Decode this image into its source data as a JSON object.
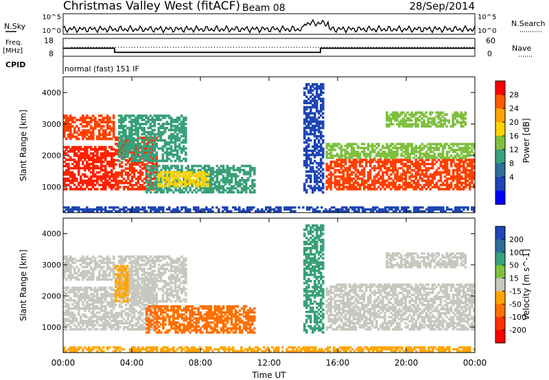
{
  "chart_data": {
    "type": "heatmap",
    "header": {
      "title": "Christmas Valley West (fitACF)",
      "beam": "Beam 08",
      "date": "28/Sep/2014"
    },
    "nsky_panel": {
      "left_label": "N.Sky",
      "right_label": "N.Search",
      "left_ticks": [
        "10^5",
        "10^0"
      ],
      "right_ticks": [
        "10^5",
        "10^0"
      ]
    },
    "freq_panel": {
      "left_label_1": "Freq.",
      "left_label_2": "[MHz]",
      "right_label": "Nave",
      "left_ticks": [
        "18",
        "8"
      ],
      "right_ticks": [
        "60",
        "0"
      ],
      "freq_steps": [
        {
          "from": 0,
          "to": 3,
          "value": 12.5
        },
        {
          "from": 3,
          "to": 15,
          "value": 10.2
        },
        {
          "from": 15,
          "to": 24,
          "value": 12.5
        }
      ]
    },
    "cpid": {
      "label": "CPID",
      "text": "normal (fast) 151 IF"
    },
    "x_axis": {
      "label": "Time UT",
      "ticks": [
        "00:00",
        "04:00",
        "08:00",
        "12:00",
        "16:00",
        "20:00",
        "00:00"
      ],
      "range_hours": [
        0,
        24
      ]
    },
    "y_axis": {
      "label": "Slant Range [km]",
      "ticks": [
        "1000",
        "2000",
        "3000",
        "4000"
      ],
      "range_km": [
        180,
        4500
      ]
    },
    "power_panel": {
      "colorbar_label": "Power [dB]",
      "colorbar_ticks": [
        "28",
        "24",
        "20",
        "16",
        "12",
        "8",
        "4"
      ],
      "colorbar_colors": [
        "#ff0000",
        "#ff5a00",
        "#ffa500",
        "#ffd200",
        "#7fc040",
        "#3aa07a",
        "#2c6e9a",
        "#1e46b4",
        "#0000ff"
      ],
      "regions": [
        {
          "t0": 0.0,
          "t1": 3.0,
          "r0": 900,
          "r1": 2300,
          "color": "#ff2000"
        },
        {
          "t0": 0.0,
          "t1": 3.0,
          "r0": 2500,
          "r1": 3300,
          "color": "#ff4000"
        },
        {
          "t0": 3.0,
          "t1": 5.5,
          "r0": 900,
          "r1": 2600,
          "color": "#ff3000"
        },
        {
          "t0": 3.2,
          "t1": 7.2,
          "r0": 1800,
          "r1": 3300,
          "color": "#3aa07a"
        },
        {
          "t0": 4.8,
          "t1": 11.2,
          "r0": 800,
          "r1": 1700,
          "color": "#3aa07a"
        },
        {
          "t0": 5.5,
          "t1": 8.5,
          "r0": 1000,
          "r1": 1500,
          "color": "#ffd200"
        },
        {
          "t0": 14.0,
          "t1": 15.2,
          "r0": 800,
          "r1": 4300,
          "color": "#1e46b4"
        },
        {
          "t0": 15.3,
          "t1": 24.0,
          "r0": 900,
          "r1": 1900,
          "color": "#ff4000"
        },
        {
          "t0": 15.3,
          "t1": 24.0,
          "r0": 1900,
          "r1": 2400,
          "color": "#7fc040"
        },
        {
          "t0": 18.8,
          "t1": 23.5,
          "r0": 2900,
          "r1": 3400,
          "color": "#7fc040"
        },
        {
          "t0": 0.0,
          "t1": 24.0,
          "r0": 200,
          "r1": 380,
          "color": "#1e46b4"
        }
      ]
    },
    "velocity_panel": {
      "colorbar_label": "Velocity [m s^-1]",
      "colorbar_ticks": [
        "200",
        "100",
        "50",
        "15",
        "-15",
        "-50",
        "-100",
        "-200"
      ],
      "colorbar_colors": [
        "#1e46b4",
        "#2c6e9a",
        "#3aa07a",
        "#7fc040",
        "#c8c8c0",
        "#ffa500",
        "#ff7000",
        "#ff3000",
        "#ff0000"
      ],
      "regions": [
        {
          "t0": 0.0,
          "t1": 3.0,
          "r0": 900,
          "r1": 2300,
          "color": "#c8c8c0"
        },
        {
          "t0": 0.0,
          "t1": 3.0,
          "r0": 2500,
          "r1": 3300,
          "color": "#c8c8c0"
        },
        {
          "t0": 3.0,
          "t1": 5.5,
          "r0": 900,
          "r1": 2600,
          "color": "#c8c8c0"
        },
        {
          "t0": 3.2,
          "t1": 7.2,
          "r0": 1800,
          "r1": 3300,
          "color": "#c8c8c0"
        },
        {
          "t0": 3.0,
          "t1": 3.8,
          "r0": 1800,
          "r1": 3000,
          "color": "#ffa500"
        },
        {
          "t0": 4.8,
          "t1": 11.2,
          "r0": 800,
          "r1": 1700,
          "color": "#ff7000"
        },
        {
          "t0": 14.0,
          "t1": 15.2,
          "r0": 800,
          "r1": 4300,
          "color": "#3aa07a"
        },
        {
          "t0": 15.3,
          "t1": 24.0,
          "r0": 900,
          "r1": 2400,
          "color": "#c8c8c0"
        },
        {
          "t0": 18.8,
          "t1": 23.5,
          "r0": 2900,
          "r1": 3400,
          "color": "#c8c8c0"
        },
        {
          "t0": 0.0,
          "t1": 24.0,
          "r0": 200,
          "r1": 380,
          "color": "#ffa500"
        }
      ]
    }
  }
}
